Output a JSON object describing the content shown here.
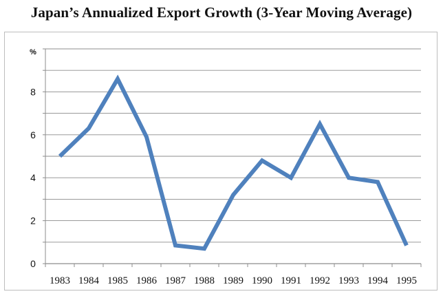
{
  "chart_data": {
    "type": "line",
    "title": "Japan’s Annualized Export Growth (3-Year Moving Average)",
    "unit_label": "%",
    "xlabel": "",
    "ylabel": "",
    "categories": [
      "1983",
      "1984",
      "1985",
      "1986",
      "1987",
      "1988",
      "1989",
      "1990",
      "1991",
      "1992",
      "1993",
      "1994",
      "1995"
    ],
    "series": [
      {
        "values": [
          5.0,
          6.3,
          8.6,
          5.9,
          0.85,
          0.7,
          3.2,
          4.8,
          4.0,
          6.5,
          4.0,
          3.8,
          0.85
        ]
      }
    ],
    "yticks": [
      0,
      2,
      4,
      6,
      8
    ],
    "ylim": [
      0,
      10
    ],
    "grid": true,
    "line_color": "#4f81bd",
    "grid_color": "#8c8c8c"
  }
}
